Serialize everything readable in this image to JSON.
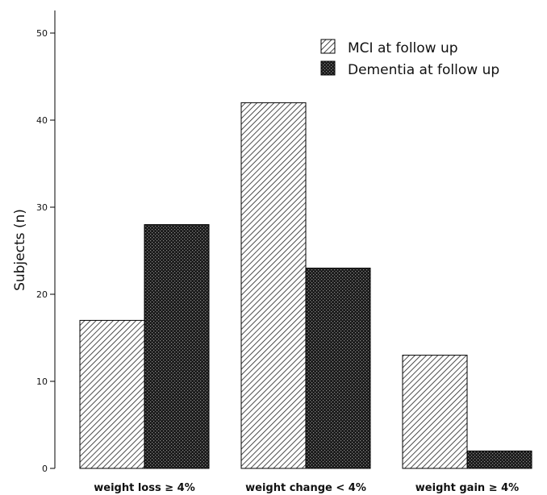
{
  "chart_data": {
    "type": "bar",
    "categories": [
      "weight loss ≥ 4%",
      "weight change < 4%",
      "weight gain ≥ 4%"
    ],
    "series": [
      {
        "name": "MCI at follow up",
        "values": [
          17,
          42,
          13
        ],
        "pattern": "diagonal-hatch",
        "color": "#000000"
      },
      {
        "name": "Dementia at follow up",
        "values": [
          28,
          23,
          2
        ],
        "pattern": "dense-crosshatch",
        "color": "#000000"
      }
    ],
    "title": "",
    "xlabel": "",
    "ylabel": "Subjects (n)",
    "ylim": [
      0,
      50
    ],
    "yticks": [
      0,
      10,
      20,
      30,
      40,
      50
    ],
    "grid": false,
    "legend_position": "top-right"
  }
}
